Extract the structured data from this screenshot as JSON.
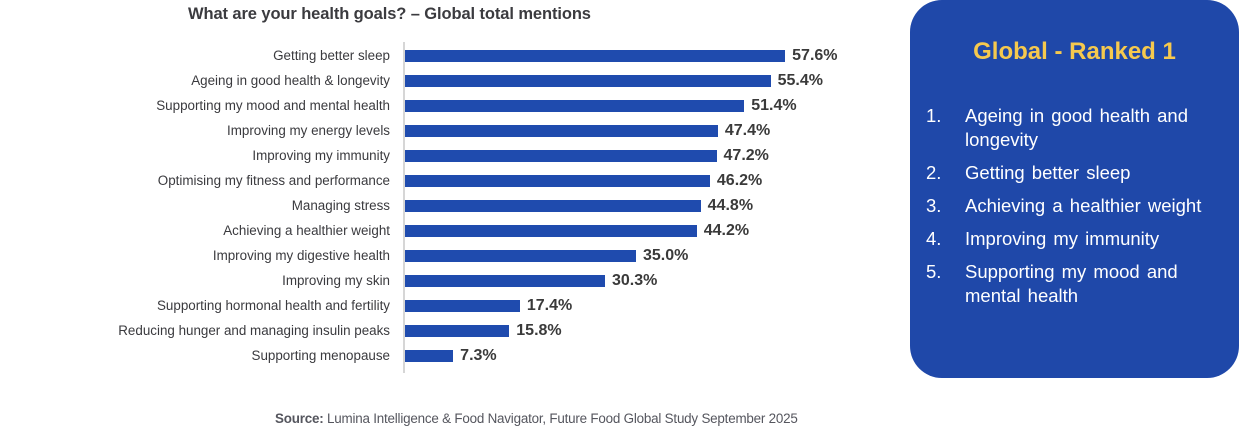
{
  "chart_data": {
    "type": "bar",
    "orientation": "horizontal",
    "title": "What are your health goals? – Global total mentions",
    "xlabel": "",
    "ylabel": "",
    "value_suffix": "%",
    "grid": false,
    "legend": null,
    "categories": [
      "Getting better sleep",
      "Ageing in good health & longevity",
      "Supporting my mood and mental health",
      "Improving my energy levels",
      "Improving my immunity",
      "Optimising my fitness and performance",
      "Managing stress",
      "Achieving a healthier weight",
      "Improving my digestive health",
      "Improving my skin",
      "Supporting hormonal health and fertility",
      "Reducing hunger and managing insulin peaks",
      "Supporting menopause"
    ],
    "values": [
      57.6,
      55.4,
      51.4,
      47.4,
      47.2,
      46.2,
      44.8,
      44.2,
      35.0,
      30.3,
      17.4,
      15.8,
      7.3
    ],
    "value_labels": [
      "57.6%",
      "55.4%",
      "51.4%",
      "47.4%",
      "47.2%",
      "46.2%",
      "44.8%",
      "44.2%",
      "35.0%",
      "30.3%",
      "17.4%",
      "15.8%",
      "7.3%"
    ],
    "xlim": [
      0,
      60
    ],
    "bar_color": "#1f4bae"
  },
  "panel": {
    "heading": "Global - Ranked 1",
    "items": [
      {
        "num": "1.",
        "text": "Ageing in good health and longevity"
      },
      {
        "num": "2.",
        "text": "Getting better sleep"
      },
      {
        "num": "3.",
        "text": "Achieving a healthier weight"
      },
      {
        "num": "4.",
        "text": "Improving my immunity"
      },
      {
        "num": "5.",
        "text": "Supporting my mood and mental health"
      }
    ],
    "background_color": "#1f48a9",
    "heading_color": "#f6c94e"
  },
  "source": {
    "label": "Source:",
    "text": " Lumina Intelligence & Food Navigator, Future Food Global Study September 2025"
  }
}
